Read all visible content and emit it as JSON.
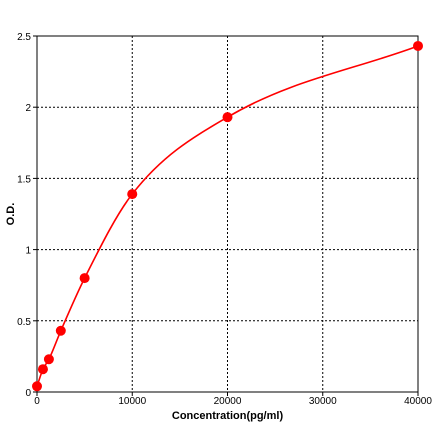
{
  "chart_data": {
    "type": "scatter",
    "title": "",
    "xlabel": "Concentration(pg/ml)",
    "ylabel": "O.D.",
    "xlim": [
      0,
      40000
    ],
    "ylim": [
      0,
      2.5
    ],
    "x_ticks": [
      0,
      10000,
      20000,
      30000,
      40000
    ],
    "x_tick_labels": [
      "0",
      "10000",
      "20000",
      "30000",
      "40000"
    ],
    "y_ticks": [
      0,
      0.5,
      1,
      1.5,
      2,
      2.5
    ],
    "y_tick_labels": [
      "0",
      "0.5",
      "1",
      "1.5",
      "2",
      "2.5"
    ],
    "grid": true,
    "series": [
      {
        "x": [
          0,
          625,
          1250,
          2500,
          5000,
          10000,
          20000,
          40000
        ],
        "y": [
          0.04,
          0.16,
          0.23,
          0.43,
          0.8,
          1.39,
          1.93,
          2.43
        ],
        "fit_curve": true
      }
    ],
    "colors": {
      "series": "#ff0000",
      "grid": "#000000"
    }
  }
}
